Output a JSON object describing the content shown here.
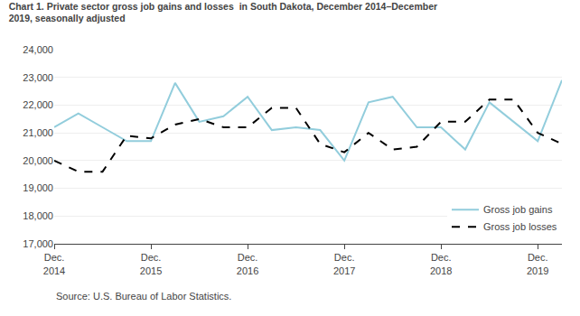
{
  "chart_data": {
    "type": "line",
    "title": "Chart 1. Private sector gross job gains and losses  in South Dakota, December 2014–December\n2019, seasonally adjusted",
    "categories": [
      "Dec.\n2014",
      null,
      null,
      null,
      "Dec.\n2015",
      null,
      null,
      null,
      "Dec.\n2016",
      null,
      null,
      null,
      "Dec.\n2017",
      null,
      null,
      null,
      "Dec.\n2018",
      null,
      null,
      null,
      "Dec.\n2019",
      null
    ],
    "series": [
      {
        "name": "Gross job gains",
        "color": "#92CDDC",
        "line_style": "solid",
        "values": [
          21200,
          21700,
          21200,
          20700,
          20700,
          22800,
          21400,
          21600,
          22300,
          21100,
          21200,
          21100,
          20000,
          22100,
          22300,
          21200,
          21200,
          20400,
          22100,
          21400,
          20700,
          22900
        ]
      },
      {
        "name": "Gross job losses",
        "color": "#000000",
        "line_style": "dashed",
        "values": [
          20000,
          19600,
          19600,
          20900,
          20800,
          21300,
          21500,
          21200,
          21200,
          21900,
          21900,
          20600,
          20300,
          21000,
          20400,
          20500,
          21400,
          21400,
          22200,
          22200,
          21000,
          20600
        ]
      }
    ],
    "ylim": [
      17000,
      24000
    ],
    "yticks": [
      {
        "value": 17000,
        "label": "17,000"
      },
      {
        "value": 18000,
        "label": "18,000"
      },
      {
        "value": 19000,
        "label": "19,000"
      },
      {
        "value": 20000,
        "label": "20,000"
      },
      {
        "value": 21000,
        "label": "21,000"
      },
      {
        "value": 22000,
        "label": "22,000"
      },
      {
        "value": 23000,
        "label": "23,000"
      },
      {
        "value": 24000,
        "label": "24,000"
      }
    ],
    "grid": true,
    "legend": "lower right",
    "annotations": [
      "Source: U.S. Bureau of Labor Statistics."
    ]
  }
}
